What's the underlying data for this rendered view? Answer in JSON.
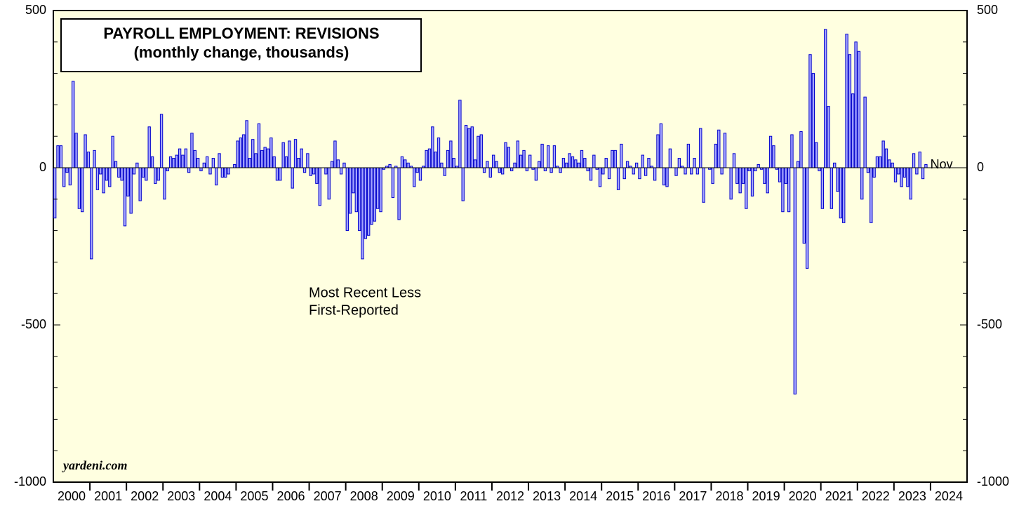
{
  "chart_data": {
    "type": "bar",
    "title": "PAYROLL EMPLOYMENT: REVISIONS",
    "subtitle": "(monthly change, thousands)",
    "annotation": "Most Recent Less",
    "annotation2": "First-Reported",
    "source": "yardeni.com",
    "last_label": "Nov",
    "categories": [
      "2000",
      "2001",
      "2002",
      "2003",
      "2004",
      "2005",
      "2006",
      "2007",
      "2008",
      "2009",
      "2010",
      "2011",
      "2012",
      "2013",
      "2014",
      "2015",
      "2016",
      "2017",
      "2018",
      "2019",
      "2020",
      "2021",
      "2022",
      "2023",
      "2024"
    ],
    "values": [
      [
        -160,
        70,
        70,
        -60,
        -15,
        -55,
        275,
        110,
        -130,
        -140,
        105,
        50
      ],
      [
        -290,
        55,
        -70,
        -20,
        -80,
        -40,
        -60,
        100,
        20,
        -30,
        -40,
        -185
      ],
      [
        -90,
        -145,
        -20,
        15,
        -105,
        -30,
        -40,
        130,
        35,
        -50,
        -40,
        170
      ],
      [
        -100,
        -10,
        35,
        30,
        40,
        60,
        40,
        60,
        -15,
        110,
        55,
        30
      ],
      [
        -10,
        15,
        35,
        -20,
        30,
        -55,
        45,
        -30,
        -30,
        -20,
        0,
        10
      ],
      [
        85,
        95,
        105,
        150,
        30,
        90,
        45,
        140,
        55,
        65,
        60,
        95
      ],
      [
        35,
        -40,
        -40,
        80,
        35,
        85,
        -65,
        90,
        30,
        60,
        -15,
        45
      ],
      [
        -25,
        -20,
        -50,
        -120,
        0,
        -20,
        -100,
        20,
        85,
        25,
        -20,
        15
      ],
      [
        -200,
        -145,
        -80,
        -140,
        -200,
        -290,
        -225,
        -215,
        -180,
        -170,
        -130,
        -140
      ],
      [
        -5,
        5,
        10,
        -95,
        5,
        -165,
        35,
        25,
        15,
        5,
        -60,
        -15
      ],
      [
        -40,
        5,
        55,
        60,
        130,
        50,
        95,
        15,
        -25,
        55,
        85,
        30
      ],
      [
        5,
        215,
        -105,
        135,
        125,
        130,
        25,
        100,
        105,
        -15,
        20,
        -30
      ],
      [
        40,
        20,
        -15,
        -20,
        80,
        65,
        -10,
        15,
        85,
        40,
        55,
        -10
      ],
      [
        40,
        -5,
        -40,
        20,
        75,
        -10,
        70,
        -15,
        70,
        5,
        -15,
        30
      ],
      [
        15,
        45,
        35,
        25,
        15,
        55,
        30,
        -10,
        -40,
        40,
        -5,
        -60
      ],
      [
        -20,
        30,
        -35,
        55,
        55,
        -70,
        75,
        -35,
        20,
        5,
        -20,
        15
      ],
      [
        -35,
        40,
        -25,
        30,
        5,
        -40,
        105,
        140,
        -55,
        -60,
        60,
        0
      ],
      [
        -25,
        30,
        5,
        -20,
        75,
        -20,
        30,
        -20,
        125,
        -110,
        0,
        -5
      ],
      [
        -50,
        75,
        120,
        -20,
        110,
        0,
        -100,
        45,
        -50,
        -80,
        -50,
        -130
      ],
      [
        -10,
        -90,
        -10,
        10,
        -5,
        -50,
        -80,
        100,
        70,
        -5,
        -45,
        -140
      ],
      [
        -50,
        -140,
        105,
        -720,
        20,
        115,
        -240,
        -320,
        360,
        300,
        80,
        -10
      ],
      [
        -130,
        440,
        195,
        -130,
        15,
        -75,
        -160,
        -175,
        425,
        360,
        235,
        400
      ],
      [
        370,
        -100,
        225,
        -15,
        -175,
        -30,
        35,
        35,
        85,
        60,
        25,
        15
      ],
      [
        -45,
        -20,
        -60,
        -30,
        -60,
        -100,
        45,
        -20,
        50,
        -35,
        10
      ],
      []
    ],
    "color": "#a4a4ff",
    "edge_color": "#0000cc",
    "background": "#ffffe0",
    "ylim": [
      -1000,
      500
    ],
    "yticks": [
      -1000,
      -500,
      0,
      500
    ],
    "yminorticks": [
      -900,
      -800,
      -700,
      -600,
      -400,
      -300,
      -200,
      -100,
      100,
      200,
      300,
      400
    ]
  }
}
